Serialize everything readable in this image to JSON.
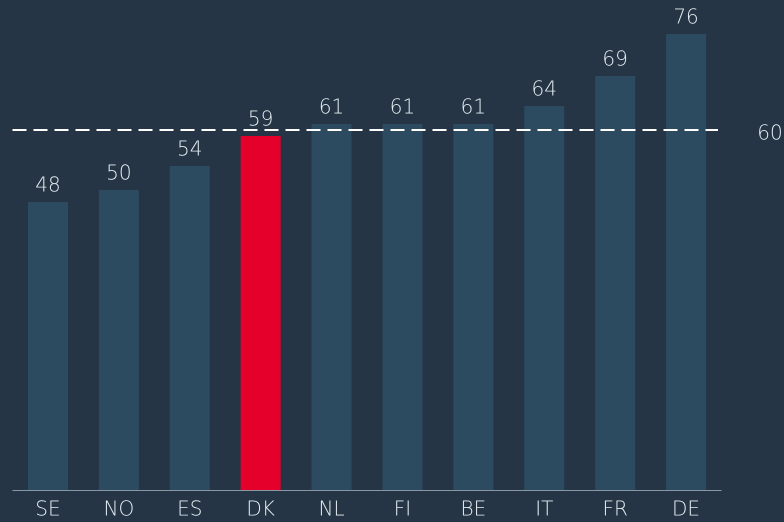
{
  "chart_data": {
    "type": "bar",
    "categories": [
      "SE",
      "NO",
      "ES",
      "DK",
      "NL",
      "FI",
      "BE",
      "IT",
      "FR",
      "DE"
    ],
    "values": [
      48,
      50,
      54,
      59,
      61,
      61,
      61,
      64,
      69,
      76
    ],
    "colors": [
      "#2c4b60",
      "#2c4b60",
      "#2c4b60",
      "#e4002b",
      "#2c4b60",
      "#2c4b60",
      "#2c4b60",
      "#2c4b60",
      "#2c4b60",
      "#2c4b60"
    ],
    "ylim": [
      0,
      80
    ],
    "reference_line": 60
  }
}
